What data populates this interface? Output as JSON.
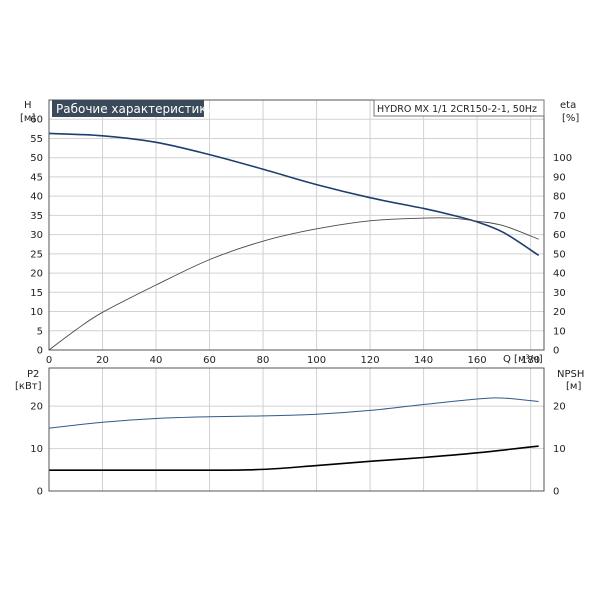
{
  "chart_data": [
    {
      "type": "line",
      "title": "Рабочие характеристики",
      "subtitle": "HYDRO MX 1/1 2CR150-2-1, 50Hz",
      "x_axis": {
        "label": "Q [м³/ч]",
        "range": [
          0,
          185
        ],
        "ticks": [
          "0",
          "20",
          "40",
          "60",
          "80",
          "100",
          "120",
          "140",
          "160",
          "180"
        ]
      },
      "y_left": {
        "label": "H",
        "unit": "[м]",
        "range": [
          0,
          65
        ],
        "ticks": [
          "0",
          "5",
          "10",
          "15",
          "20",
          "25",
          "30",
          "35",
          "40",
          "45",
          "50",
          "55",
          "60"
        ]
      },
      "y_right": {
        "label": "eta",
        "unit": "[%]",
        "range": [
          0,
          130
        ],
        "ticks": [
          "0",
          "10",
          "20",
          "30",
          "40",
          "50",
          "60",
          "70",
          "80",
          "90",
          "100"
        ]
      },
      "grid": true,
      "series": [
        {
          "axis": "left",
          "color": "#1f3e6e",
          "x": [
            0,
            20,
            40,
            60,
            80,
            100,
            120,
            140,
            150,
            160,
            170,
            183
          ],
          "y": [
            56.3,
            55.7,
            54,
            50.8,
            47,
            43,
            39.6,
            36.8,
            35.2,
            33.3,
            30.5,
            24.6
          ]
        },
        {
          "axis": "right",
          "color": "#4a4a4a",
          "x": [
            0,
            10,
            20,
            40,
            60,
            80,
            100,
            120,
            140,
            150,
            160,
            170,
            183
          ],
          "y": [
            0,
            10.4,
            19.6,
            33.8,
            47,
            56.6,
            63,
            67.2,
            68.6,
            68.6,
            67,
            64.6,
            57.6
          ]
        }
      ]
    },
    {
      "type": "line",
      "title": "",
      "x_axis": {
        "label": "",
        "range": [
          0,
          185
        ],
        "ticks": []
      },
      "y_left": {
        "label": "P2",
        "unit": "[кВт]",
        "range": [
          0,
          29
        ],
        "ticks": [
          "0",
          "10",
          "20"
        ]
      },
      "y_right": {
        "label": "NPSH",
        "unit": "[м]",
        "range": [
          0,
          29
        ],
        "ticks": [
          "0",
          "10",
          "20"
        ]
      },
      "grid": true,
      "series": [
        {
          "axis": "left",
          "color": "#2f5a8a",
          "x": [
            0,
            20,
            40,
            60,
            80,
            100,
            120,
            140,
            160,
            170,
            183
          ],
          "y": [
            14.8,
            16.2,
            17.1,
            17.5,
            17.7,
            18.1,
            19,
            20.4,
            21.7,
            21.9,
            21.1
          ]
        },
        {
          "axis": "right",
          "color": "#000000",
          "x": [
            0,
            20,
            40,
            60,
            80,
            100,
            120,
            140,
            160,
            183
          ],
          "y": [
            4.9,
            4.9,
            4.9,
            4.9,
            5.1,
            6,
            7,
            7.9,
            9,
            10.6
          ]
        }
      ]
    }
  ]
}
